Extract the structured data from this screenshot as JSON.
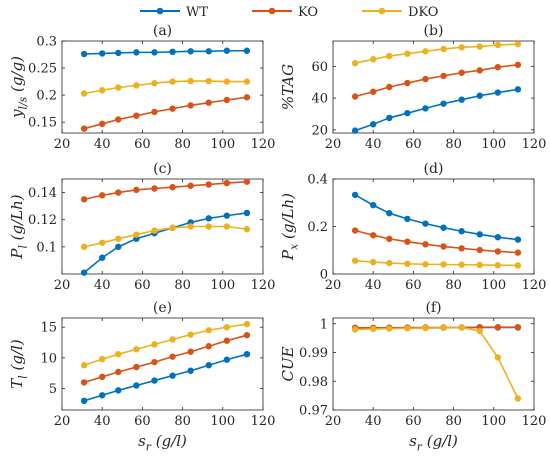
{
  "legend": [
    {
      "name": "WT",
      "color": "#0072BD"
    },
    {
      "name": "KO",
      "color": "#D95319"
    },
    {
      "name": "DKO",
      "color": "#EDB120"
    }
  ],
  "chart_data": [
    {
      "panel": "(a)",
      "type": "line",
      "xlabel": "",
      "ylabel": "y_{l/s} (g/g)",
      "xlim": [
        20,
        120
      ],
      "ylim": [
        0.13,
        0.3
      ],
      "xticks": [
        20,
        40,
        60,
        80,
        100,
        120
      ],
      "yticks": [
        0.15,
        0.2,
        0.25,
        0.3
      ],
      "ytick_labels": [
        "0.15",
        "0.2",
        "0.25",
        "0.3"
      ],
      "x": [
        31,
        40,
        48,
        57,
        66,
        75,
        84,
        93,
        102,
        112
      ],
      "series": [
        {
          "name": "WT",
          "values": [
            0.276,
            0.277,
            0.278,
            0.279,
            0.279,
            0.28,
            0.281,
            0.281,
            0.282,
            0.282
          ]
        },
        {
          "name": "KO",
          "values": [
            0.138,
            0.147,
            0.155,
            0.162,
            0.169,
            0.175,
            0.181,
            0.186,
            0.191,
            0.196
          ]
        },
        {
          "name": "DKO",
          "values": [
            0.203,
            0.209,
            0.214,
            0.218,
            0.222,
            0.225,
            0.226,
            0.226,
            0.225,
            0.225
          ]
        }
      ]
    },
    {
      "panel": "(b)",
      "type": "line",
      "xlabel": "",
      "ylabel": "%TAG",
      "xlim": [
        20,
        120
      ],
      "ylim": [
        18,
        76
      ],
      "xticks": [
        20,
        40,
        60,
        80,
        100,
        120
      ],
      "yticks": [
        20,
        40,
        60
      ],
      "ytick_labels": [
        "20",
        "40",
        "60"
      ],
      "x": [
        31,
        40,
        48,
        57,
        66,
        75,
        84,
        93,
        102,
        112
      ],
      "series": [
        {
          "name": "WT",
          "values": [
            19.5,
            23.5,
            27.5,
            30.5,
            33.5,
            36.5,
            39,
            41.5,
            43.5,
            45.5
          ]
        },
        {
          "name": "KO",
          "values": [
            41,
            44,
            47,
            49.5,
            52,
            54,
            56,
            57.5,
            59.5,
            61
          ]
        },
        {
          "name": "DKO",
          "values": [
            62,
            64.5,
            66.5,
            68,
            69.5,
            71,
            72,
            72.5,
            73.5,
            74
          ]
        }
      ]
    },
    {
      "panel": "(c)",
      "type": "line",
      "xlabel": "",
      "ylabel": "P_l (g/Lh)",
      "xlim": [
        20,
        120
      ],
      "ylim": [
        0.08,
        0.15
      ],
      "xticks": [
        20,
        40,
        60,
        80,
        100,
        120
      ],
      "yticks": [
        0.1,
        0.12,
        0.14
      ],
      "ytick_labels": [
        "0.1",
        "0.12",
        "0.14"
      ],
      "x": [
        31,
        40,
        48,
        57,
        66,
        75,
        84,
        93,
        102,
        112
      ],
      "series": [
        {
          "name": "WT",
          "values": [
            0.081,
            0.092,
            0.1,
            0.106,
            0.11,
            0.114,
            0.118,
            0.121,
            0.123,
            0.125
          ]
        },
        {
          "name": "KO",
          "values": [
            0.135,
            0.138,
            0.14,
            0.142,
            0.143,
            0.144,
            0.145,
            0.146,
            0.147,
            0.148
          ]
        },
        {
          "name": "DKO",
          "values": [
            0.1,
            0.103,
            0.106,
            0.109,
            0.112,
            0.114,
            0.115,
            0.115,
            0.115,
            0.113
          ]
        }
      ]
    },
    {
      "panel": "(d)",
      "type": "line",
      "xlabel": "",
      "ylabel": "P_x (g/Lh)",
      "xlim": [
        20,
        120
      ],
      "ylim": [
        0,
        0.4
      ],
      "xticks": [
        20,
        40,
        60,
        80,
        100,
        120
      ],
      "yticks": [
        0,
        0.2,
        0.4
      ],
      "ytick_labels": [
        "0",
        "0.2",
        "0.4"
      ],
      "x": [
        31,
        40,
        48,
        57,
        66,
        75,
        84,
        93,
        102,
        112
      ],
      "series": [
        {
          "name": "WT",
          "values": [
            0.333,
            0.29,
            0.256,
            0.232,
            0.212,
            0.195,
            0.18,
            0.167,
            0.155,
            0.145
          ]
        },
        {
          "name": "KO",
          "values": [
            0.183,
            0.163,
            0.148,
            0.136,
            0.125,
            0.116,
            0.108,
            0.101,
            0.095,
            0.09
          ]
        },
        {
          "name": "DKO",
          "values": [
            0.056,
            0.05,
            0.046,
            0.043,
            0.041,
            0.04,
            0.039,
            0.038,
            0.037,
            0.036
          ]
        }
      ]
    },
    {
      "panel": "(e)",
      "type": "line",
      "xlabel": "s_r (g/l)",
      "ylabel": "T_l (g/l)",
      "xlim": [
        20,
        120
      ],
      "ylim": [
        1.5,
        16.5
      ],
      "xticks": [
        20,
        40,
        60,
        80,
        100,
        120
      ],
      "yticks": [
        5,
        10,
        15
      ],
      "ytick_labels": [
        "5",
        "10",
        "15"
      ],
      "x": [
        31,
        40,
        48,
        57,
        66,
        75,
        84,
        93,
        102,
        112
      ],
      "series": [
        {
          "name": "WT",
          "values": [
            3,
            3.9,
            4.7,
            5.5,
            6.3,
            7.1,
            7.9,
            8.8,
            9.7,
            10.6
          ]
        },
        {
          "name": "KO",
          "values": [
            6,
            6.9,
            7.7,
            8.5,
            9.3,
            10.2,
            11,
            11.9,
            12.8,
            13.7
          ]
        },
        {
          "name": "DKO",
          "values": [
            8.8,
            9.8,
            10.6,
            11.4,
            12.2,
            13,
            13.8,
            14.5,
            15,
            15.5
          ]
        }
      ]
    },
    {
      "panel": "(f)",
      "type": "line",
      "xlabel": "s_r (g/l)",
      "ylabel": "CUE",
      "xlim": [
        20,
        120
      ],
      "ylim": [
        0.97,
        1.002
      ],
      "xticks": [
        20,
        40,
        60,
        80,
        100,
        120
      ],
      "yticks": [
        0.97,
        0.98,
        0.99,
        1
      ],
      "ytick_labels": [
        "0.97",
        "0.98",
        "0.99",
        "1"
      ],
      "x": [
        31,
        40,
        48,
        57,
        66,
        75,
        84,
        93,
        102,
        112
      ],
      "series": [
        {
          "name": "WT",
          "values": [
            0.9985,
            0.9985,
            0.9986,
            0.9986,
            0.9986,
            0.9986,
            0.9987,
            0.9987,
            0.9987,
            0.9987
          ]
        },
        {
          "name": "KO",
          "values": [
            0.9986,
            0.9986,
            0.9986,
            0.9987,
            0.9987,
            0.9987,
            0.9987,
            0.9988,
            0.9988,
            0.9988
          ]
        },
        {
          "name": "DKO",
          "values": [
            0.998,
            0.9982,
            0.9983,
            0.9984,
            0.9985,
            0.9986,
            0.9987,
            0.9975,
            0.9883,
            0.974
          ]
        }
      ]
    }
  ]
}
